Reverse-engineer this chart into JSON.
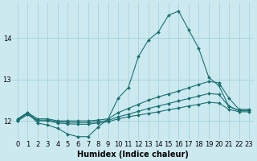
{
  "xlabel": "Humidex (Indice chaleur)",
  "bg_color": "#cce9f0",
  "grid_color": "#9dcfdc",
  "line_color": "#1a7070",
  "x_ticks": [
    0,
    1,
    2,
    3,
    4,
    5,
    6,
    7,
    8,
    9,
    10,
    11,
    12,
    13,
    14,
    15,
    16,
    17,
    18,
    19,
    20,
    21,
    22,
    23
  ],
  "y_ticks": [
    12,
    13,
    14
  ],
  "ylim": [
    11.55,
    14.85
  ],
  "xlim": [
    -0.5,
    23.5
  ],
  "line1_y": [
    12.0,
    12.2,
    11.95,
    11.9,
    11.82,
    11.68,
    11.62,
    11.62,
    11.85,
    12.05,
    12.55,
    12.8,
    13.55,
    13.95,
    14.15,
    14.55,
    14.65,
    14.2,
    13.75,
    13.05,
    12.85,
    12.35,
    12.25,
    12.25
  ],
  "line2_y": [
    12.05,
    12.2,
    12.05,
    12.05,
    12.0,
    12.0,
    12.0,
    12.0,
    12.02,
    12.05,
    12.2,
    12.3,
    12.4,
    12.5,
    12.58,
    12.65,
    12.72,
    12.8,
    12.88,
    12.95,
    12.92,
    12.55,
    12.28,
    12.28
  ],
  "line3_y": [
    12.03,
    12.18,
    12.02,
    12.02,
    11.98,
    11.97,
    11.96,
    11.96,
    11.98,
    12.01,
    12.1,
    12.16,
    12.23,
    12.3,
    12.36,
    12.42,
    12.48,
    12.54,
    12.6,
    12.66,
    12.64,
    12.35,
    12.25,
    12.25
  ],
  "line4_y": [
    12.0,
    12.15,
    12.0,
    12.0,
    11.95,
    11.93,
    11.92,
    11.92,
    11.95,
    11.98,
    12.05,
    12.1,
    12.14,
    12.18,
    12.22,
    12.27,
    12.31,
    12.36,
    12.4,
    12.45,
    12.43,
    12.28,
    12.22,
    12.22
  ],
  "xlabel_fontsize": 7,
  "tick_fontsize": 6,
  "marker_size": 2.0,
  "line_width": 0.8
}
